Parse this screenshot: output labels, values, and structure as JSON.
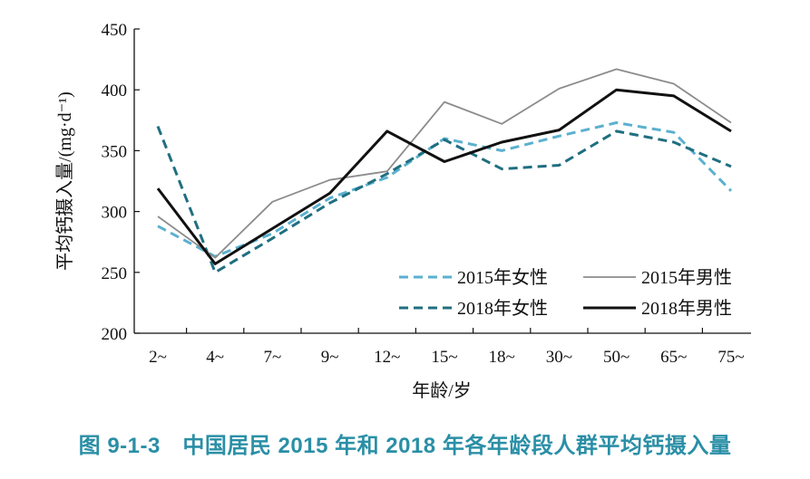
{
  "caption": "图 9-1-3　中国居民 2015 年和 2018 年各年龄段人群平均钙摄入量",
  "chart_data": {
    "type": "line",
    "title": "",
    "xlabel": "年龄/岁",
    "ylabel": "平均钙摄入量/(mg·d⁻¹)",
    "ylim": [
      200,
      450
    ],
    "yticks": [
      200,
      250,
      300,
      350,
      400,
      450
    ],
    "categories": [
      "2~",
      "4~",
      "7~",
      "9~",
      "12~",
      "15~",
      "18~",
      "30~",
      "50~",
      "65~",
      "75~"
    ],
    "legend_position": "bottom-right",
    "series": [
      {
        "name": "2015年女性",
        "color": "#5bb0cf",
        "dash": "dashed",
        "values": [
          288,
          263,
          282,
          311,
          328,
          360,
          350,
          362,
          373,
          365,
          317
        ]
      },
      {
        "name": "2015年男性",
        "color": "#8c8c8c",
        "dash": "solid",
        "values": [
          296,
          262,
          308,
          326,
          333,
          390,
          372,
          401,
          417,
          405,
          373
        ]
      },
      {
        "name": "2018年女性",
        "color": "#1f6f80",
        "dash": "dashed",
        "values": [
          370,
          250,
          278,
          307,
          331,
          359,
          335,
          338,
          366,
          357,
          337
        ]
      },
      {
        "name": "2018年男性",
        "color": "#111111",
        "dash": "solid",
        "values": [
          319,
          257,
          286,
          315,
          366,
          341,
          357,
          367,
          400,
          395,
          366
        ]
      }
    ]
  }
}
